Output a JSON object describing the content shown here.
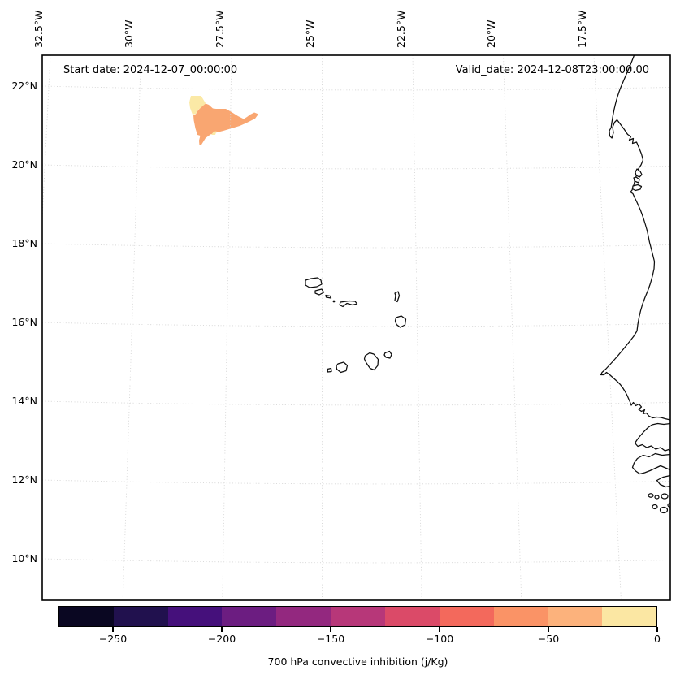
{
  "annotations": {
    "start_date": "Start date: 2024-12-07_00:00:00",
    "valid_date": "Valid_date: 2024-12-08T23:00:00.00"
  },
  "axes": {
    "lon_labels": [
      "32.5°W",
      "30°W",
      "27.5°W",
      "25°W",
      "22.5°W",
      "20°W",
      "17.5°W"
    ],
    "lat_labels": [
      "22°N",
      "20°N",
      "18°N",
      "16°N",
      "14°N",
      "12°N",
      "10°N"
    ]
  },
  "colorbar": {
    "label": "700 hPa convective inhibition (j/Kg)",
    "tick_labels": [
      "−250",
      "−200",
      "−150",
      "−100",
      "−50",
      "0"
    ],
    "tick_values": [
      -250,
      -200,
      -150,
      -100,
      -50,
      0
    ],
    "min": -275,
    "max": 0,
    "segment_colors": [
      "#0a0722",
      "#21114e",
      "#45107b",
      "#6c1d81",
      "#93287f",
      "#b73779",
      "#db4a68",
      "#f3695c",
      "#fa9366",
      "#fcb27c",
      "#fbe7a3"
    ]
  },
  "map": {
    "coastline_color": "#0d0d0d",
    "gridline_color": "#d4d4d4",
    "fill_regions": [
      {
        "name": "cin-fill-yellow",
        "color": "#fbe9a6",
        "value_bin": "-25 to 0 j/Kg"
      },
      {
        "name": "cin-fill-orange",
        "color": "#f9a671",
        "value_bin": "-75 to -25 j/Kg"
      }
    ]
  },
  "chart_data": {
    "type": "heatmap",
    "title": "700 hPa convective inhibition (j/Kg)",
    "subtitle_left": "Start date: 2024-12-07_00:00:00",
    "subtitle_right": "Valid_date: 2024-12-08T23:00:00.00",
    "projection": "regional conic-like map of the eastern tropical Atlantic / West Africa",
    "lon_ticks_deg": [
      -32.5,
      -30,
      -27.5,
      -25,
      -22.5,
      -20,
      -17.5
    ],
    "lat_ticks_deg": [
      22,
      20,
      18,
      16,
      14,
      12,
      10
    ],
    "approx_extent": {
      "lon": [
        -32.7,
        -15.4
      ],
      "lat": [
        9.0,
        22.7
      ]
    },
    "colormap": "magma, 11 discrete bins",
    "levels_jkg": [
      -275,
      -250,
      -225,
      -200,
      -175,
      -150,
      -125,
      -100,
      -75,
      -50,
      -25,
      0
    ],
    "colorbar_tick_labels": [
      "−250",
      "−200",
      "−150",
      "−100",
      "−50",
      "0"
    ],
    "legend_position": "horizontal colorbar below map",
    "grid": "dotted light-gray graticule every 2.5° longitude / 2° latitude",
    "series": [
      {
        "name": "convective inhibition filled contours",
        "regions": [
          {
            "value_range_jkg": "-25 to 0",
            "color": "#fbe9a6",
            "approx_lon": [
              -28.6,
              -28.1
            ],
            "approx_lat": [
              21.1,
              21.75
            ]
          },
          {
            "value_range_jkg": "-75 to -25",
            "color": "#f9a671",
            "approx_lon": [
              -28.7,
              -26.7
            ],
            "approx_lat": [
              20.5,
              21.35
            ]
          }
        ]
      }
    ],
    "basemap_features": [
      "West African coastline (Western Sahara to Guinea-Bissau, incl. Cap Blanc, Cap Vert, Gambia river, Bijagós islands)",
      "Cape Verde archipelago outlines"
    ]
  }
}
